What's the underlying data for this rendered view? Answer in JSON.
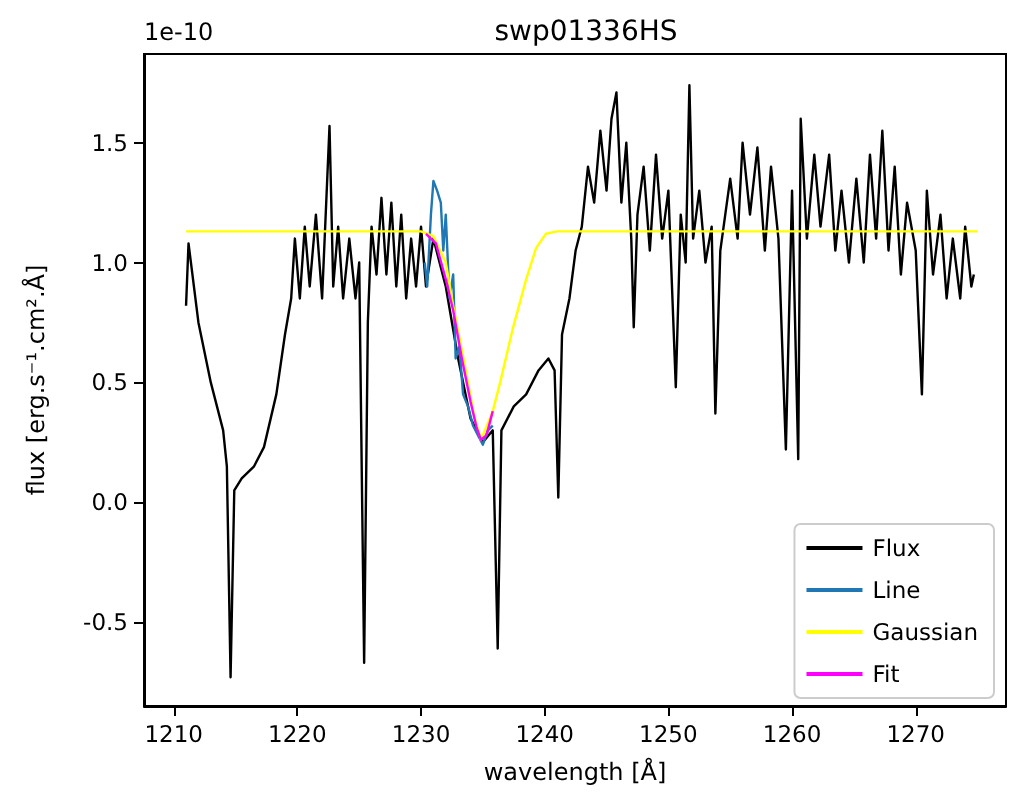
{
  "chart_data": {
    "type": "line",
    "title": "swp01336HS",
    "xlabel": "wavelength [Å]",
    "ylabel": "flux [erg.s⁻¹.cm².Å]",
    "annotations": [
      "1e-10"
    ],
    "xlim": [
      1207.6,
      1277.3
    ],
    "xticks": [
      1210,
      1220,
      1230,
      1240,
      1250,
      1260,
      1270
    ],
    "ylim": [
      -0.85,
      1.87
    ],
    "yticks": [
      -0.5,
      {
        "value": 0,
        "label": "0.0"
      },
      0.5,
      {
        "value": 1,
        "label": "1.0"
      },
      1.5
    ],
    "grid": false,
    "legend": "bottom right",
    "marker": "none",
    "line_style": "solid",
    "series": [
      {
        "name": "Flux",
        "color": "#000000",
        "x": [
          1211,
          1211.2,
          1212,
          1213,
          1214,
          1214.3,
          1214.6,
          1214.9,
          1215.5,
          1216.5,
          1217.3,
          1218.3,
          1219,
          1219.5,
          1219.8,
          1220.2,
          1220.6,
          1221,
          1221.5,
          1222,
          1222.6,
          1222.9,
          1223.3,
          1223.7,
          1224.2,
          1224.7,
          1225.0,
          1225.4,
          1225.7,
          1226.0,
          1226.4,
          1226.8,
          1227.2,
          1227.6,
          1228,
          1228.4,
          1228.8,
          1229.2,
          1229.6,
          1230,
          1230.4,
          1231,
          1232,
          1233,
          1234,
          1235,
          1235.8,
          1236.2,
          1236.5,
          1237.5,
          1238.5,
          1239.5,
          1240.3,
          1240.8,
          1241.1,
          1241.4,
          1242,
          1242.5,
          1243,
          1243.5,
          1244,
          1244.5,
          1245,
          1245.4,
          1245.8,
          1246.2,
          1246.6,
          1247,
          1247.2,
          1247.5,
          1248,
          1248.5,
          1249,
          1249.5,
          1250,
          1250.6,
          1251,
          1251.4,
          1251.7,
          1252,
          1252.5,
          1253,
          1253.5,
          1253.8,
          1254.2,
          1255,
          1255.6,
          1256,
          1256.6,
          1257.2,
          1257.8,
          1258.3,
          1258.9,
          1259.5,
          1260,
          1260.5,
          1260.7,
          1261.2,
          1261.8,
          1262.3,
          1263,
          1263.5,
          1264,
          1264.6,
          1265.2,
          1265.8,
          1266.3,
          1266.8,
          1267.3,
          1267.8,
          1268.3,
          1268.8,
          1269.3,
          1270,
          1270.5,
          1270.9,
          1271.4,
          1272,
          1272.5,
          1273,
          1273.6,
          1274,
          1274.5,
          1274.7
        ],
        "values": [
          0.82,
          1.08,
          0.75,
          0.5,
          0.3,
          0.15,
          -0.73,
          0.05,
          0.1,
          0.15,
          0.23,
          0.45,
          0.7,
          0.85,
          1.1,
          0.85,
          1.15,
          0.9,
          1.2,
          0.85,
          1.57,
          0.9,
          1.15,
          0.85,
          1.1,
          0.85,
          1.0,
          -0.67,
          0.75,
          1.15,
          0.95,
          1.27,
          0.95,
          1.25,
          0.9,
          1.2,
          0.85,
          1.1,
          0.9,
          1.15,
          0.9,
          1.1,
          0.9,
          0.6,
          0.35,
          0.25,
          0.3,
          -0.61,
          0.3,
          0.4,
          0.45,
          0.55,
          0.6,
          0.55,
          0.02,
          0.7,
          0.85,
          1.05,
          1.15,
          1.4,
          1.25,
          1.55,
          1.3,
          1.6,
          1.71,
          1.25,
          1.5,
          1.1,
          0.73,
          1.2,
          1.4,
          1.05,
          1.45,
          1.1,
          1.3,
          0.48,
          1.2,
          1.0,
          1.74,
          1.1,
          1.3,
          1.0,
          1.15,
          0.37,
          1.05,
          1.35,
          1.1,
          1.5,
          1.2,
          1.48,
          1.05,
          1.4,
          1.1,
          0.22,
          1.3,
          0.18,
          1.6,
          1.1,
          1.45,
          1.15,
          1.45,
          1.05,
          1.3,
          1.0,
          1.35,
          1.0,
          1.45,
          1.1,
          1.55,
          1.05,
          1.4,
          0.95,
          1.25,
          1.05,
          0.45,
          1.3,
          0.95,
          1.2,
          0.85,
          1.1,
          0.85,
          1.15,
          0.9,
          0.95
        ]
      },
      {
        "name": "Line",
        "color": "#1f77b4",
        "x": [
          1230.3,
          1230.5,
          1230.8,
          1231.0,
          1231.3,
          1231.6,
          1231.8,
          1232.0,
          1232.3,
          1232.6,
          1232.8,
          1233.1,
          1233.4,
          1233.8,
          1234.2,
          1234.6,
          1235.0,
          1235.4,
          1235.8
        ],
        "values": [
          1.0,
          0.9,
          1.2,
          1.34,
          1.3,
          1.25,
          1.05,
          1.2,
          0.85,
          0.95,
          0.6,
          0.65,
          0.45,
          0.4,
          0.32,
          0.28,
          0.24,
          0.3,
          0.32
        ]
      },
      {
        "name": "Gaussian",
        "color": "#ffff00",
        "x": [
          1211,
          1230,
          1231,
          1232,
          1232.6,
          1233.5,
          1234.3,
          1234.85,
          1235.8,
          1236.4,
          1237.4,
          1238.5,
          1239.3,
          1240.1,
          1241,
          1275
        ],
        "values": [
          1.13,
          1.13,
          1.11,
          1.0,
          0.82,
          0.58,
          0.36,
          0.26,
          0.38,
          0.5,
          0.72,
          0.93,
          1.06,
          1.12,
          1.13,
          1.13
        ]
      },
      {
        "name": "Fit",
        "color": "#ff00ff",
        "x": [
          1230.4,
          1231.2,
          1232,
          1232.6,
          1233.3,
          1234,
          1234.5,
          1234.85,
          1235.3,
          1235.8
        ],
        "values": [
          1.12,
          1.08,
          0.93,
          0.8,
          0.6,
          0.42,
          0.31,
          0.26,
          0.28,
          0.38
        ]
      }
    ]
  }
}
